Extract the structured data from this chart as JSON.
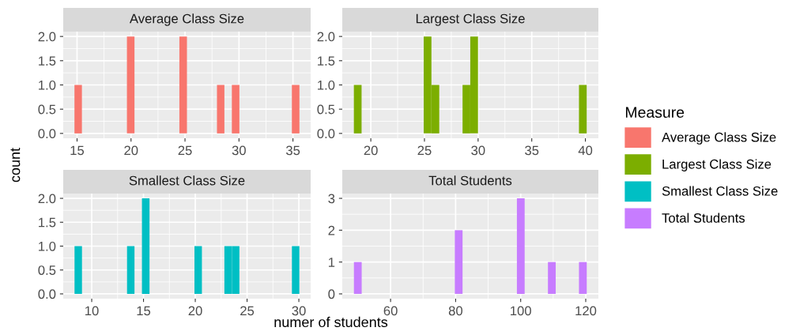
{
  "chart_data": [
    {
      "type": "histogram",
      "title": "Average Class Size",
      "xlabel": "numer of students",
      "ylabel": "count",
      "legend_title": "Measure",
      "legend": "right",
      "grid": true,
      "bins": [
        14.76,
        15.45,
        16.15,
        16.84,
        17.54,
        18.23,
        18.93,
        19.62,
        20.32,
        21.01,
        21.71,
        22.4,
        23.09,
        23.79,
        24.48,
        25.18,
        25.87,
        26.57,
        27.26,
        27.96,
        28.65,
        29.34,
        30.04,
        30.73,
        31.43,
        32.12,
        32.82,
        33.51,
        34.21,
        34.9,
        35.6
      ],
      "series": [
        {
          "name": "Average Class Size",
          "color": "#f8766d",
          "values": [
            1,
            0,
            0,
            0,
            0,
            0,
            0,
            2,
            0,
            0,
            0,
            0,
            0,
            0,
            2,
            0,
            0,
            0,
            0,
            1,
            0,
            1,
            0,
            0,
            0,
            0,
            0,
            0,
            0,
            1
          ]
        }
      ],
      "xlim": [
        13.72,
        36.64
      ],
      "xticks": [
        15,
        20,
        25,
        30,
        35
      ],
      "ylim": [
        -0.1,
        2.1
      ],
      "yticks": [
        {
          "value": 0,
          "label": "0.0"
        },
        {
          "value": 0.5,
          "label": "0.5"
        },
        {
          "value": 1,
          "label": "1.0"
        },
        {
          "value": 1.5,
          "label": "1.5"
        },
        {
          "value": 2,
          "label": "2.0"
        }
      ]
    },
    {
      "type": "histogram",
      "title": "Largest Class Size",
      "legend": "right",
      "grid": true,
      "bins": [
        18.42,
        19.14,
        19.87,
        20.59,
        21.31,
        22.04,
        22.76,
        23.48,
        24.21,
        24.93,
        25.65,
        26.38,
        27.1,
        27.82,
        28.55,
        29.27,
        29.99,
        30.72,
        31.44,
        32.16,
        32.89,
        33.61,
        34.33,
        35.06,
        35.78,
        36.5,
        37.23,
        37.95,
        38.67,
        39.4,
        40.12
      ],
      "series": [
        {
          "name": "Largest Class Size",
          "color": "#7cae00",
          "values": [
            1,
            0,
            0,
            0,
            0,
            0,
            0,
            0,
            0,
            2,
            1,
            0,
            0,
            0,
            1,
            2,
            0,
            0,
            0,
            0,
            0,
            0,
            0,
            0,
            0,
            0,
            0,
            0,
            0,
            1
          ]
        }
      ],
      "xlim": [
        17.34,
        41.21
      ],
      "xticks": [
        20,
        25,
        30,
        35,
        40
      ],
      "ylim": [
        -0.1,
        2.1
      ],
      "yticks": [
        {
          "value": 0,
          "label": "0.0"
        },
        {
          "value": 0.5,
          "label": "0.5"
        },
        {
          "value": 1,
          "label": "1.0"
        },
        {
          "value": 1.5,
          "label": "1.5"
        },
        {
          "value": 2,
          "label": "2.0"
        }
      ]
    },
    {
      "type": "histogram",
      "title": "Smallest Class Size",
      "legend": "right",
      "grid": true,
      "bins": [
        8.34,
        9.06,
        9.79,
        10.51,
        11.23,
        11.96,
        12.68,
        13.41,
        14.13,
        14.85,
        15.58,
        16.3,
        17.02,
        17.75,
        18.47,
        19.2,
        19.92,
        20.64,
        21.37,
        22.09,
        22.81,
        23.54,
        24.26,
        24.99,
        25.71,
        26.43,
        27.16,
        27.88,
        28.6,
        29.33,
        30.05
      ],
      "series": [
        {
          "name": "Smallest Class Size",
          "color": "#00bfc4",
          "values": [
            1,
            0,
            0,
            0,
            0,
            0,
            0,
            1,
            0,
            2,
            0,
            0,
            0,
            0,
            0,
            0,
            1,
            0,
            0,
            0,
            1,
            1,
            0,
            0,
            0,
            0,
            0,
            0,
            0,
            1
          ]
        }
      ],
      "xlim": [
        7.25,
        31.14
      ],
      "xticks": [
        10,
        15,
        20,
        25,
        30
      ],
      "ylim": [
        -0.1,
        2.1
      ],
      "yticks": [
        {
          "value": 0,
          "label": "0.0"
        },
        {
          "value": 0.5,
          "label": "0.5"
        },
        {
          "value": 1,
          "label": "1.0"
        },
        {
          "value": 1.5,
          "label": "1.5"
        },
        {
          "value": 2,
          "label": "2.0"
        }
      ]
    },
    {
      "type": "histogram",
      "title": "Total Students",
      "legend": "right",
      "grid": true,
      "bins": [
        48.73,
        51.12,
        53.5,
        55.89,
        58.27,
        60.66,
        63.05,
        65.43,
        67.82,
        70.2,
        72.59,
        74.98,
        77.36,
        79.75,
        82.13,
        84.52,
        86.91,
        89.29,
        91.68,
        94.06,
        96.45,
        98.84,
        101.22,
        103.61,
        105.99,
        108.38,
        110.77,
        113.15,
        115.54,
        117.92,
        120.31
      ],
      "series": [
        {
          "name": "Total Students",
          "color": "#c77cff",
          "values": [
            1,
            0,
            0,
            0,
            0,
            0,
            0,
            0,
            0,
            0,
            0,
            0,
            0,
            2,
            0,
            0,
            0,
            0,
            0,
            0,
            0,
            3,
            0,
            0,
            0,
            1,
            0,
            0,
            0,
            1
          ]
        }
      ],
      "xlim": [
        45.15,
        123.89
      ],
      "xticks": [
        60,
        80,
        100,
        120
      ],
      "ylim": [
        -0.15,
        3.15
      ],
      "yticks": [
        0,
        1,
        2,
        3
      ]
    }
  ]
}
